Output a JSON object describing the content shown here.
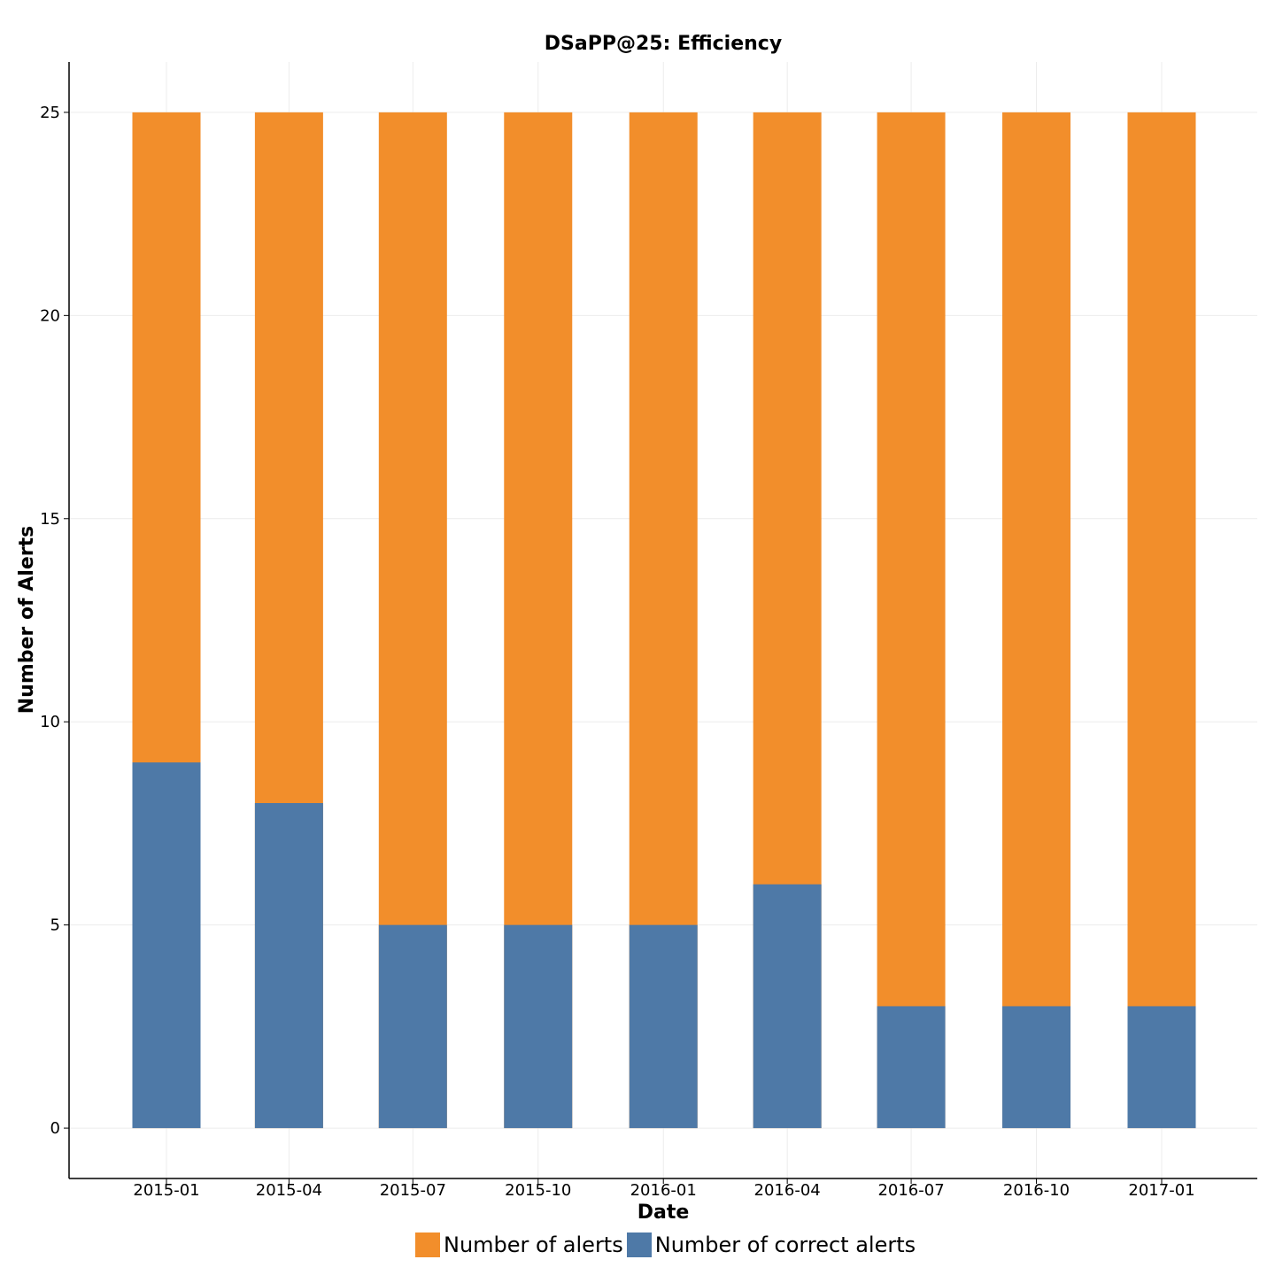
{
  "chart_data": {
    "type": "bar",
    "title": "DSaPP@25: Efficiency",
    "xlabel": "Date",
    "ylabel": "Number of Alerts",
    "categories": [
      "2015-01",
      "2015-04",
      "2015-07",
      "2015-10",
      "2016-01",
      "2016-04",
      "2016-07",
      "2016-10",
      "2017-01"
    ],
    "series": [
      {
        "name": "Number of alerts",
        "color": "#f28e2b",
        "values": [
          25,
          25,
          25,
          25,
          25,
          25,
          25,
          25,
          25
        ]
      },
      {
        "name": "Number of correct alerts",
        "color": "#4e79a7",
        "values": [
          9,
          8,
          5,
          5,
          5,
          6,
          3,
          3,
          3
        ]
      }
    ],
    "ylim": [
      -1.24,
      26.24
    ],
    "yticks": [
      0,
      5,
      10,
      15,
      20,
      25
    ],
    "grid": true,
    "legend_position": "bottom"
  }
}
